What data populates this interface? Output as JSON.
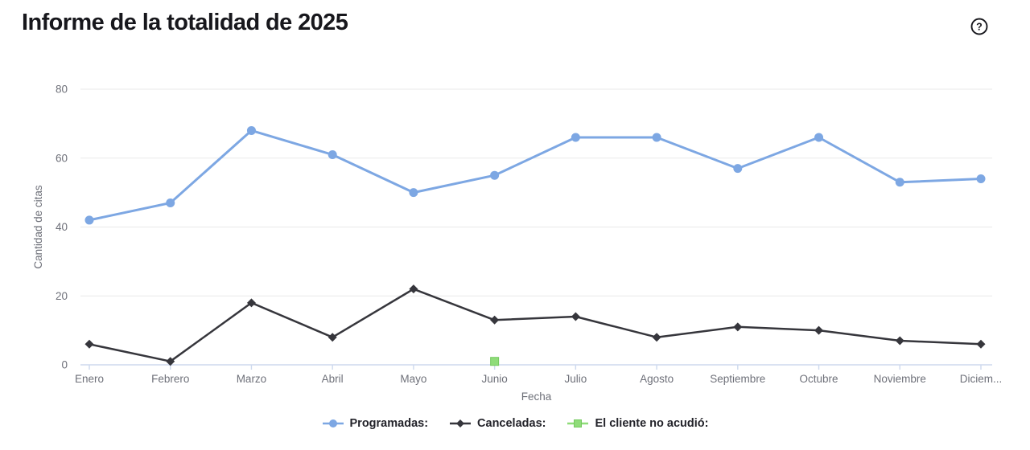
{
  "page": {
    "title": "Informe de la totalidad de 2025",
    "help_icon_glyph": "?",
    "background_color": "#FFFFFF",
    "title_color": "#17171C"
  },
  "chart_data": {
    "type": "line",
    "title": "Informe de la totalidad de 2025",
    "xlabel": "Fecha",
    "ylabel": "Cantidad de citas",
    "ylim": [
      0,
      80
    ],
    "yticks": [
      0,
      20,
      40,
      60,
      80
    ],
    "grid": true,
    "legend_position": "bottom",
    "categories": [
      "Enero",
      "Febrero",
      "Marzo",
      "Abril",
      "Mayo",
      "Junio",
      "Julio",
      "Agosto",
      "Septiembre",
      "Octubre",
      "Noviembre",
      "Diciembre"
    ],
    "x_tick_labels": [
      "Enero",
      "Febrero",
      "Marzo",
      "Abril",
      "Mayo",
      "Junio",
      "Julio",
      "Agosto",
      "Septiembre",
      "Octubre",
      "Noviembre",
      "Diciem..."
    ],
    "series": [
      {
        "name": "Programadas:",
        "marker": "circle",
        "color": "#7DA7E3",
        "line_width": 3,
        "values": [
          42,
          47,
          68,
          61,
          50,
          55,
          66,
          66,
          57,
          66,
          53,
          54
        ]
      },
      {
        "name": "Canceladas:",
        "marker": "diamond",
        "color": "#36363C",
        "line_width": 2.5,
        "values": [
          6,
          1,
          18,
          8,
          22,
          13,
          14,
          8,
          11,
          10,
          7,
          6
        ]
      },
      {
        "name": "El cliente no acudió:",
        "marker": "square",
        "color": "#8FDC79",
        "marker_border": "#74C95E",
        "line_width": 2.5,
        "values": [
          null,
          null,
          null,
          null,
          null,
          1,
          null,
          null,
          null,
          null,
          null,
          null
        ]
      }
    ],
    "colors": {
      "gridline": "#E9E9E9",
      "axis_line": "#CDD9EE",
      "axis_text": "#6E7079",
      "legend_text": "#23232A"
    }
  }
}
